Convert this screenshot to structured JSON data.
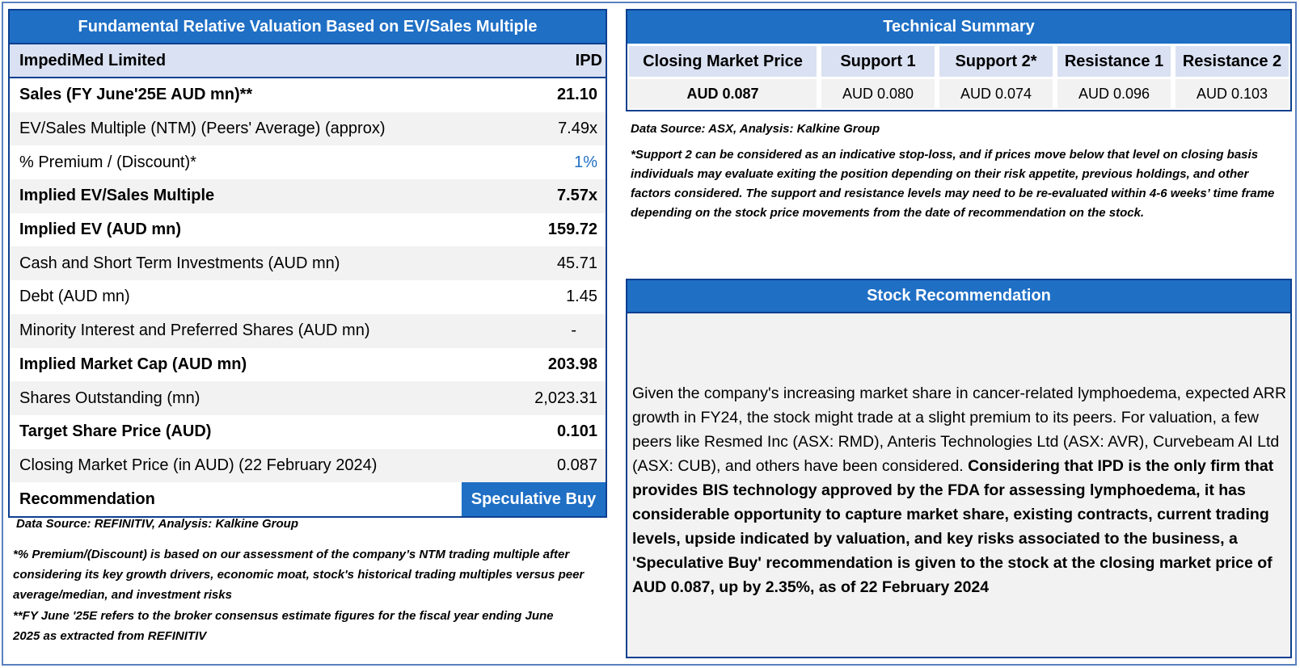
{
  "valuation": {
    "title": "Fundamental Relative Valuation Based on EV/Sales Multiple",
    "company": "ImpediMed Limited",
    "ticker": "IPD",
    "rows": [
      {
        "label": "Sales (FY June'25E AUD mn)**",
        "value": "21.10"
      },
      {
        "label": "EV/Sales Multiple (NTM)  (Peers' Average) (approx)",
        "value": "7.49x"
      },
      {
        "label": "% Premium / (Discount)*",
        "value": "1%"
      },
      {
        "label": "Implied EV/Sales Multiple",
        "value": "7.57x"
      },
      {
        "label": "Implied EV (AUD mn)",
        "value": "159.72"
      },
      {
        "label": "Cash and Short Term Investments (AUD mn)",
        "value": "45.71"
      },
      {
        "label": "Debt (AUD mn)",
        "value": "1.45"
      },
      {
        "label": "Minority Interest and Preferred Shares (AUD mn)",
        "value": "-"
      },
      {
        "label": "Implied Market Cap (AUD mn)",
        "value": "203.98"
      },
      {
        "label": "Shares Outstanding (mn)",
        "value": "2,023.31"
      },
      {
        "label": "Target Share Price (AUD)",
        "value": "0.101"
      },
      {
        "label": "Closing Market Price (in AUD) (22 February 2024)",
        "value": "0.087"
      }
    ],
    "recommendation_label": "Recommendation",
    "recommendation_value": "Speculative Buy",
    "source": "Data Source: REFINITIV, Analysis: Kalkine Group",
    "note1": "*% Premium/(Discount) is based on our assessment of the company’s NTM trading multiple after considering its key growth drivers, economic moat, stock's historical trading multiples versus peer average/median, and investment risks",
    "note2": "**FY June '25E refers to the broker consensus estimate figures for the fiscal year ending June 2025  as extracted from REFINITIV"
  },
  "technical": {
    "title": "Technical Summary",
    "columns": [
      {
        "header": "Closing Market Price",
        "value": "AUD 0.087"
      },
      {
        "header": "Support 1",
        "value": "AUD 0.080"
      },
      {
        "header": "Support 2*",
        "value": "AUD 0.074"
      },
      {
        "header": "Resistance 1",
        "value": "AUD 0.096"
      },
      {
        "header": "Resistance 2",
        "value": "AUD 0.103"
      }
    ],
    "source": "Data Source: ASX, Analysis: Kalkine Group",
    "note": "*Support 2 can be considered as an indicative stop-loss, and if prices move below that level on closing basis individuals may evaluate exiting the position depending on their risk appetite, previous holdings, and other factors considered. The support and resistance levels may need to be re-evaluated within 4-6 weeks’ time frame depending on the stock price movements from the date of recommendation on the stock."
  },
  "stock": {
    "title": "Stock Recommendation",
    "text_regular": "Given the company's increasing market share in cancer-related lymphoedema, expected ARR growth in FY24,  the stock might trade at a slight premium to its peers. For valuation, a few peers like Resmed Inc (ASX: RMD), Anteris Technologies Ltd (ASX: AVR), Curvebeam AI Ltd (ASX: CUB), and others have been considered. ",
    "text_bold": "Considering that IPD is the only firm that provides BIS technology approved by the FDA for assessing lymphoedema, it has considerable opportunity to capture market share, existing contracts,  current trading levels, upside indicated by valuation, and key risks associated to the business, a 'Speculative Buy' recommendation is given to the stock at the closing market price of AUD 0.087, up by 2.35%, as of 22 February 2024"
  },
  "colors": {
    "header_blue": "#1f6fc5",
    "border_navy": "#0d3f8f",
    "light_blue": "#d9e1f2",
    "row_gray": "#f2f2f2"
  }
}
